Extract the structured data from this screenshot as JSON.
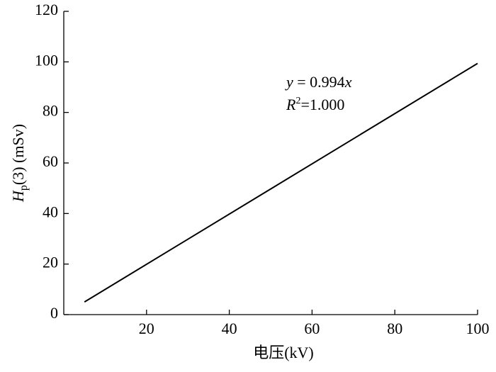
{
  "chart_data": {
    "type": "line",
    "x_label": "电压(kV)",
    "y_label": [
      "H",
      "p",
      "(3) (mSv)"
    ],
    "annotations": [
      [
        "y",
        " = 0.994",
        "x"
      ],
      [
        "R",
        "2",
        "=1.000"
      ]
    ],
    "x": [
      5,
      100
    ],
    "series": [
      {
        "color": "#000000",
        "values": [
          5,
          99.4
        ]
      }
    ],
    "xlim": [
      0,
      100
    ],
    "xticks": [
      20,
      40,
      60,
      80,
      100
    ],
    "ylim": [
      0,
      120
    ],
    "yticks": [
      0,
      20,
      40,
      60,
      80,
      100,
      120
    ],
    "grid": false
  }
}
